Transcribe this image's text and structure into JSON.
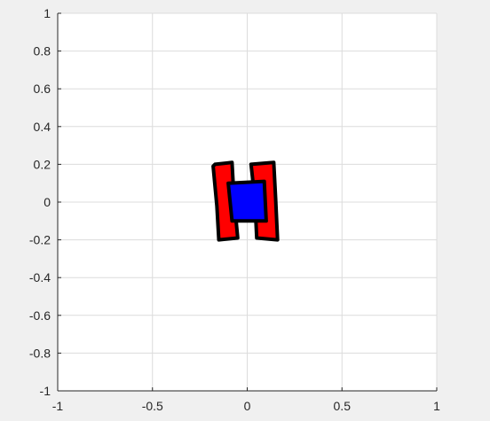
{
  "chart_data": {
    "type": "scatter",
    "title": "",
    "xlabel": "",
    "ylabel": "",
    "xlim": [
      -1,
      1
    ],
    "ylim": [
      -1,
      1
    ],
    "xticks": [
      -1,
      -0.5,
      0,
      0.5,
      1
    ],
    "xtick_labels": [
      "-1",
      "-0.5",
      "0",
      "0.5",
      "1"
    ],
    "yticks": [
      1,
      0.8,
      0.6,
      0.4,
      0.2,
      0,
      -0.2,
      -0.4,
      -0.6,
      -0.8,
      -1
    ],
    "ytick_labels": [
      "1",
      "0.8",
      "0.6",
      "0.4",
      "0.2",
      "0",
      "-0.2",
      "-0.4",
      "-0.6",
      "-0.8",
      "-1"
    ],
    "grid": true,
    "colors": {
      "figure_bg": "#f0f0f0",
      "axes_bg": "#ffffff",
      "grid": "#dcdcdc",
      "axis": "#262626",
      "red_fill": "#ff0000",
      "blue_fill": "#0000ff",
      "outline": "#000000"
    },
    "shapes": [
      {
        "name": "left-red-bar",
        "fill": "red",
        "points": [
          [
            -0.17,
            0.2
          ],
          [
            -0.08,
            0.21
          ],
          [
            -0.07,
            0.02
          ],
          [
            -0.05,
            -0.19
          ],
          [
            -0.15,
            -0.2
          ],
          [
            -0.16,
            -0.02
          ],
          [
            -0.18,
            0.19
          ]
        ]
      },
      {
        "name": "right-red-bar",
        "fill": "red",
        "points": [
          [
            0.02,
            0.2
          ],
          [
            0.14,
            0.21
          ],
          [
            0.15,
            0.02
          ],
          [
            0.16,
            -0.2
          ],
          [
            0.05,
            -0.19
          ],
          [
            0.04,
            0.02
          ]
        ]
      },
      {
        "name": "blue-body",
        "fill": "blue",
        "points": [
          [
            -0.1,
            0.1
          ],
          [
            0.09,
            0.11
          ],
          [
            0.1,
            -0.1
          ],
          [
            -0.08,
            -0.1
          ]
        ]
      }
    ]
  }
}
